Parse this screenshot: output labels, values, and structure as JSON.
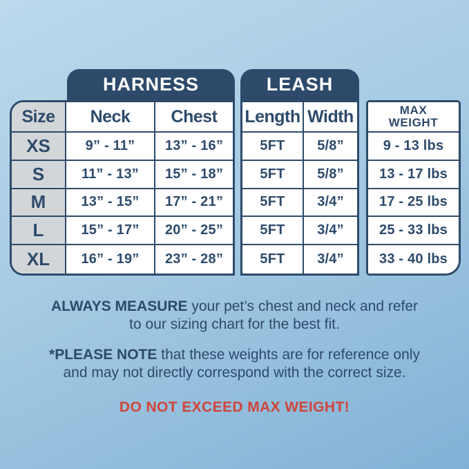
{
  "colors": {
    "navy": "#2d4a6b",
    "red": "#d0453a",
    "size_column_bg": "#d3d6d9",
    "cell_bg": "#ffffff",
    "background_gradient_start": "#bcd9ec",
    "background_gradient_end": "#82b1d6"
  },
  "chart_data": {
    "type": "table",
    "title": "Pet harness and leash sizing chart",
    "column_groups": [
      {
        "label": "HARNESS",
        "columns": [
          "Neck",
          "Chest"
        ]
      },
      {
        "label": "LEASH",
        "columns": [
          "Length",
          "Width"
        ]
      }
    ],
    "columns": [
      "Size",
      "Neck",
      "Chest",
      "Length",
      "Width",
      "MAX WEIGHT"
    ],
    "max_weight_lines": [
      "MAX",
      "WEIGHT"
    ],
    "rows": [
      [
        "XS",
        "9” - 11”",
        "13” - 16”",
        "5FT",
        "5/8”",
        "9 - 13 lbs"
      ],
      [
        "S",
        "11” - 13”",
        "15” - 18”",
        "5FT",
        "5/8”",
        "13 - 17 lbs"
      ],
      [
        "M",
        "13” - 15”",
        "17” - 21”",
        "5FT",
        "3/4”",
        "17 - 25 lbs"
      ],
      [
        "L",
        "15” - 17”",
        "20” - 25”",
        "5FT",
        "3/4”",
        "25 - 33 lbs"
      ],
      [
        "XL",
        "16” - 19”",
        "23” - 28”",
        "5FT",
        "3/4”",
        "33 - 40 lbs"
      ]
    ]
  },
  "notes": [
    {
      "bold": "ALWAYS MEASURE",
      "line1_rest": " your pet’s chest and neck and refer",
      "line2": "to our sizing chart for the best fit."
    },
    {
      "bold": "*PLEASE NOTE",
      "line1_rest": " that these weights are for reference only",
      "line2": "and may not directly correspond with the correct size."
    }
  ],
  "warning": "DO NOT EXCEED MAX WEIGHT!"
}
